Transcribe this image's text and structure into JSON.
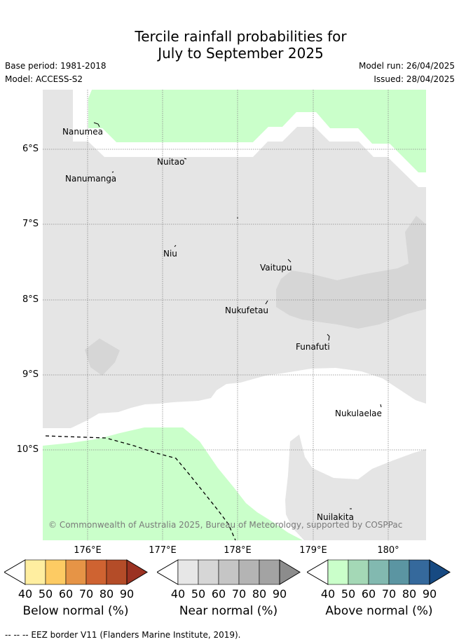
{
  "title_line1": "Tercile rainfall probabilities for",
  "title_line2": "July to September 2025",
  "base_period": "Base period: 1981-2018",
  "model": "Model: ACCESS-S2",
  "model_run": "Model run: 26/04/2025",
  "issued": "Issued: 28/04/2025",
  "lat_labels": [
    "6°S",
    "7°S",
    "8°S",
    "9°S",
    "10°S"
  ],
  "lon_labels": [
    "176°E",
    "177°E",
    "178°E",
    "179°E",
    "180°"
  ],
  "places": [
    "Nanumea",
    "Nuitao",
    "Nanumanga",
    "Niu",
    "Vaitupu",
    "Nukufetau",
    "Funafuti",
    "Nukulaelae",
    "Nuilakita"
  ],
  "copyright": "© Commonwealth of Australia 2025, Bureau of Meteorology, supported by COSPPac",
  "legends": [
    {
      "label": "Below normal (%)",
      "ticks": [
        "40",
        "50",
        "60",
        "70",
        "80",
        "90"
      ],
      "colors": [
        "#ffffff",
        "#ffeea0",
        "#fdcb63",
        "#e69446",
        "#cf6331",
        "#b44c28",
        "#9b3222"
      ]
    },
    {
      "label": "Near normal (%)",
      "ticks": [
        "40",
        "50",
        "60",
        "70",
        "80",
        "90"
      ],
      "colors": [
        "#ffffff",
        "#e7e7e7",
        "#d6d6d6",
        "#c5c5c5",
        "#b4b4b4",
        "#a3a3a3",
        "#8c8c8c"
      ]
    },
    {
      "label": "Above normal (%)",
      "ticks": [
        "40",
        "50",
        "60",
        "70",
        "80",
        "90"
      ],
      "colors": [
        "#ffffff",
        "#caffca",
        "#a4d8b6",
        "#82b9b0",
        "#5b95a2",
        "#35699c",
        "#174a82"
      ]
    }
  ],
  "footnote": "-- -- -- EEZ border V11 (Flanders Marine Institute, 2019).",
  "colors": {
    "near_40": "#e5e5e5",
    "near_50": "#d6d6d6",
    "above_40": "#caffca",
    "grid": "#888888"
  }
}
